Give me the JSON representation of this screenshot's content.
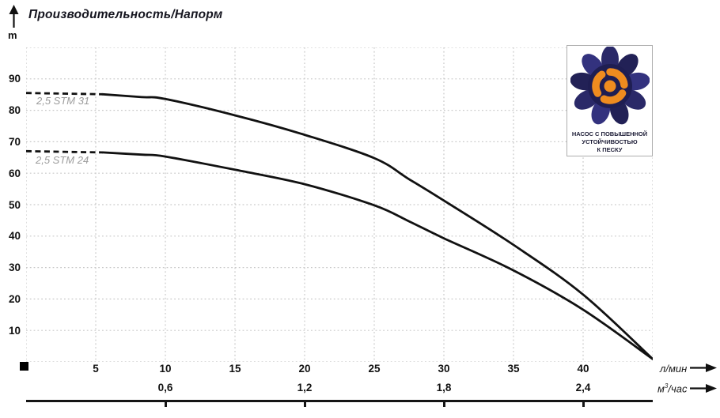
{
  "header": {
    "title": "Производительность/Напорм",
    "y_unit": "m"
  },
  "chart_data": {
    "type": "line",
    "title": "Производительность/Напорм",
    "ylabel": "m",
    "xlabel_primary": "л/мин",
    "xlabel_secondary": "м³/час",
    "xlim": [
      0,
      45
    ],
    "ylim": [
      0,
      100
    ],
    "grid": "dotted",
    "x_ticks_primary": [
      5,
      10,
      15,
      20,
      25,
      30,
      35,
      40
    ],
    "x_ticks_secondary": [
      {
        "x": 10,
        "label": "0,6"
      },
      {
        "x": 20,
        "label": "1,2"
      },
      {
        "x": 30,
        "label": "1,8"
      },
      {
        "x": 40,
        "label": "2,4"
      }
    ],
    "y_ticks": [
      10,
      20,
      30,
      40,
      50,
      60,
      70,
      80,
      90
    ],
    "series": [
      {
        "name": "2,5 STM 31",
        "dashed_until": 5.5,
        "points": [
          [
            0,
            85.5
          ],
          [
            5.5,
            85.1
          ],
          [
            8.3,
            84.2
          ],
          [
            10,
            83.6
          ],
          [
            15,
            78.4
          ],
          [
            20,
            72.2
          ],
          [
            25,
            64.8
          ],
          [
            27.5,
            58.1
          ],
          [
            30,
            51.3
          ],
          [
            35,
            37.2
          ],
          [
            40,
            21.4
          ],
          [
            45,
            0.9
          ]
        ]
      },
      {
        "name": "2,5 STM 24",
        "dashed_until": 5.5,
        "points": [
          [
            0,
            67
          ],
          [
            5.5,
            66.6
          ],
          [
            8.3,
            65.9
          ],
          [
            10,
            65.3
          ],
          [
            15,
            61.1
          ],
          [
            20,
            56.5
          ],
          [
            25,
            49.8
          ],
          [
            27.5,
            44.7
          ],
          [
            30,
            39.3
          ],
          [
            35,
            29.1
          ],
          [
            40,
            16.6
          ],
          [
            45,
            0.9
          ]
        ]
      }
    ]
  },
  "badge": {
    "lines": [
      "НАСОС С ПОВЫШЕННОЙ",
      "УСТОЙЧИВОСТЬЮ",
      "К ПЕСКУ"
    ]
  },
  "colors": {
    "curve": "#111111",
    "grid": "#c9c9c9",
    "label_gray": "#9b9b9b",
    "badge_navy": "#2a2968",
    "badge_navy_dark": "#1f1e52",
    "badge_orange": "#ef8c1f"
  }
}
